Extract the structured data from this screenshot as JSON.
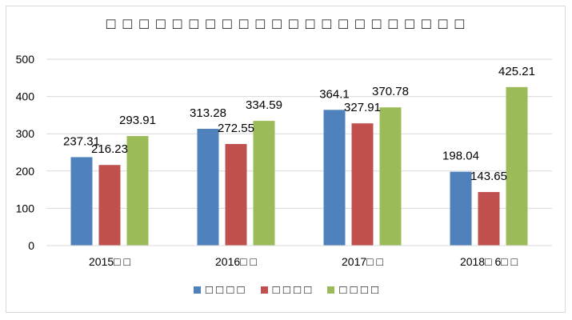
{
  "chart_data": {
    "type": "bar",
    "title": "□ □ □ □ □ □ □ □ □ □ □ □ □ □ □ □ □ □ □ □ □ □",
    "categories": [
      "2015□ □",
      "2016□ □",
      "2017□ □",
      "2018□ 6□ □"
    ],
    "series": [
      {
        "name": "□ □ □ □",
        "color": "#4f81bd",
        "values": [
          237.31,
          313.28,
          364.1,
          198.04
        ]
      },
      {
        "name": "□ □ □ □",
        "color": "#c0504d",
        "values": [
          216.23,
          272.55,
          327.91,
          143.65
        ]
      },
      {
        "name": "□ □ □ □",
        "color": "#9bbb59",
        "values": [
          293.91,
          334.59,
          370.78,
          425.21
        ]
      }
    ],
    "value_labels": [
      [
        "237.31",
        "313.28",
        "364.1",
        "198.04"
      ],
      [
        "216.23",
        "272.55",
        "327.91",
        "143.65"
      ],
      [
        "293.91",
        "334.59",
        "370.78",
        "425.21"
      ]
    ],
    "ylim": [
      0,
      500
    ],
    "yticks": [
      0,
      100,
      200,
      300,
      400,
      500
    ],
    "ytick_labels": [
      "0",
      "100",
      "200",
      "300",
      "400",
      "500"
    ],
    "grid": true,
    "legend_position": "bottom"
  }
}
